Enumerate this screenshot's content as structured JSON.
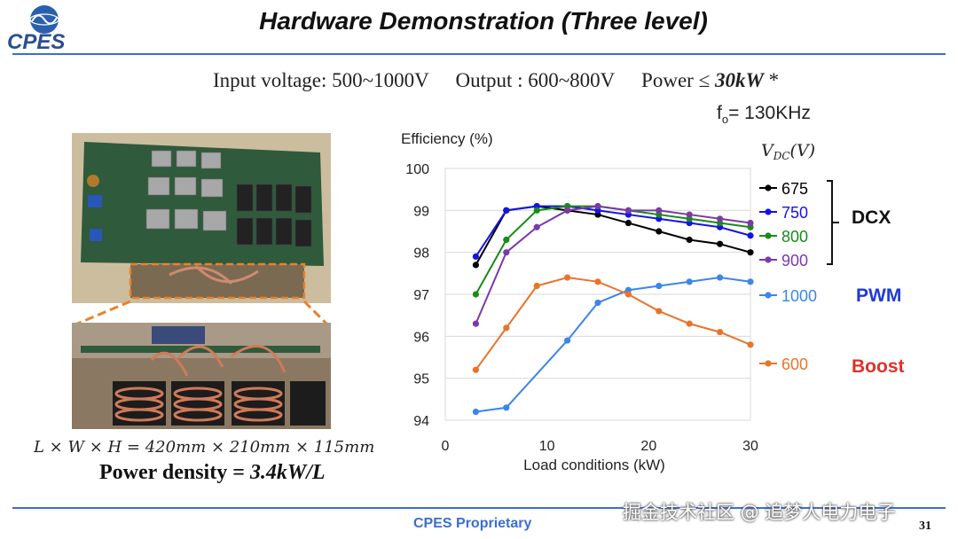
{
  "logo": {
    "text": "CPES"
  },
  "title": "Hardware Demonstration (Three level)",
  "specs": {
    "input": "Input voltage: 500~1000V",
    "output": "Output : 600~800V",
    "power_prefix": "Power ≤ ",
    "power_value": "30kW",
    "power_suffix": " *",
    "fo_label": "f",
    "fo_sub": "o",
    "fo_value": "= 130KHz"
  },
  "dimensions": "L × W × H = 420mm × 210mm × 115mm",
  "power_density_label": "Power density = ",
  "power_density_value": "3.4kW/L",
  "footer": "CPES Proprietary",
  "watermark": "掘金技术社区 @ 追梦人电力电子",
  "page_number": "31",
  "colors": {
    "accent": "#3a6fd0",
    "pwm_label": "#1f3ad6",
    "boost_label": "#e0302a"
  },
  "chart_data": {
    "type": "line",
    "title": "",
    "ylabel": "Efficiency (%)",
    "xlabel": "Load conditions (kW)",
    "legend_title": "V_DC(V)",
    "xlim": [
      0,
      30
    ],
    "ylim": [
      94,
      100
    ],
    "x_ticks": [
      "0",
      "10",
      "20",
      "30"
    ],
    "y_ticks": [
      "94",
      "95",
      "96",
      "97",
      "98",
      "99",
      "100"
    ],
    "grid": true,
    "legend_position": "right",
    "series": [
      {
        "name": "675",
        "color": "#000000",
        "group": "DCX",
        "x": [
          3,
          6,
          9,
          12,
          15,
          18,
          21,
          24,
          27,
          30
        ],
        "values": [
          97.7,
          99.0,
          99.1,
          99.0,
          98.9,
          98.7,
          98.5,
          98.3,
          98.2,
          98.0
        ]
      },
      {
        "name": "750",
        "color": "#1414e6",
        "group": "DCX",
        "x": [
          3,
          6,
          9,
          12,
          15,
          18,
          21,
          24,
          27,
          30
        ],
        "values": [
          97.9,
          99.0,
          99.1,
          99.1,
          99.0,
          98.9,
          98.8,
          98.7,
          98.6,
          98.4
        ]
      },
      {
        "name": "800",
        "color": "#1a8a1a",
        "group": "DCX",
        "x": [
          3,
          6,
          9,
          12,
          15,
          18,
          21,
          24,
          27,
          30
        ],
        "values": [
          97.0,
          98.3,
          99.0,
          99.1,
          99.1,
          99.0,
          98.9,
          98.8,
          98.7,
          98.6
        ]
      },
      {
        "name": "900",
        "color": "#7a3aa8",
        "group": "DCX",
        "x": [
          3,
          6,
          9,
          12,
          15,
          18,
          21,
          24,
          27,
          30
        ],
        "values": [
          96.3,
          98.0,
          98.6,
          99.0,
          99.1,
          99.0,
          99.0,
          98.9,
          98.8,
          98.7
        ]
      },
      {
        "name": "1000",
        "color": "#3b86e8",
        "group": "PWM",
        "x": [
          3,
          6,
          12,
          15,
          18,
          21,
          24,
          27,
          30
        ],
        "values": [
          94.2,
          94.3,
          95.9,
          96.8,
          97.1,
          97.2,
          97.3,
          97.4,
          97.3
        ]
      },
      {
        "name": "600",
        "color": "#e8742a",
        "group": "Boost",
        "x": [
          3,
          6,
          9,
          12,
          15,
          18,
          21,
          24,
          27,
          30
        ],
        "values": [
          95.2,
          96.2,
          97.2,
          97.4,
          97.3,
          97.0,
          96.6,
          96.3,
          96.1,
          95.8
        ]
      }
    ],
    "group_labels": [
      {
        "text": "DCX",
        "color": "#111111"
      },
      {
        "text": "PWM",
        "color": "#1f3ad6"
      },
      {
        "text": "Boost",
        "color": "#e0302a"
      }
    ]
  }
}
